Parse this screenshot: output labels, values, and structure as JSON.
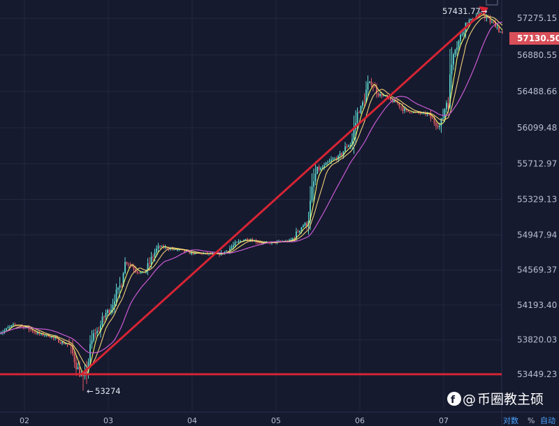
{
  "chart_data": {
    "type": "candlestick",
    "y_ticks": [
      "57275.15",
      "56880.55",
      "56488.66",
      "56099.48",
      "55712.97",
      "55329.13",
      "54947.94",
      "54569.37",
      "54193.40",
      "53820.03",
      "53449.23"
    ],
    "x_ticks": [
      "02",
      "03",
      "04",
      "05",
      "06",
      "07"
    ],
    "ylim": [
      53230,
      57500
    ],
    "current_price": "57130.50",
    "high_label": "57431.77",
    "high_arrow": "→",
    "low_label": "53274",
    "low_arrow": "←",
    "path": [
      {
        "t": -0.3,
        "p": 53900
      },
      {
        "t": -0.1,
        "p": 53980
      },
      {
        "t": 0.25,
        "p": 53870
      },
      {
        "t": 0.5,
        "p": 53780
      },
      {
        "t": 0.7,
        "p": 53420
      },
      {
        "t": 0.85,
        "p": 53900
      },
      {
        "t": 1.0,
        "p": 54130
      },
      {
        "t": 1.12,
        "p": 54350
      },
      {
        "t": 1.2,
        "p": 54650
      },
      {
        "t": 1.4,
        "p": 54540
      },
      {
        "t": 1.62,
        "p": 54820
      },
      {
        "t": 1.8,
        "p": 54790
      },
      {
        "t": 2.0,
        "p": 54750
      },
      {
        "t": 2.3,
        "p": 54740
      },
      {
        "t": 2.65,
        "p": 54900
      },
      {
        "t": 2.85,
        "p": 54860
      },
      {
        "t": 3.15,
        "p": 54880
      },
      {
        "t": 3.35,
        "p": 55060
      },
      {
        "t": 3.5,
        "p": 55650
      },
      {
        "t": 3.72,
        "p": 55770
      },
      {
        "t": 3.88,
        "p": 55920
      },
      {
        "t": 4.0,
        "p": 56300
      },
      {
        "t": 4.12,
        "p": 56580
      },
      {
        "t": 4.25,
        "p": 56450
      },
      {
        "t": 4.4,
        "p": 56380
      },
      {
        "t": 4.58,
        "p": 56270
      },
      {
        "t": 4.78,
        "p": 56250
      },
      {
        "t": 4.95,
        "p": 56120
      },
      {
        "t": 5.05,
        "p": 56400
      },
      {
        "t": 5.12,
        "p": 56950
      },
      {
        "t": 5.3,
        "p": 57250
      },
      {
        "t": 5.45,
        "p": 57320
      },
      {
        "t": 5.58,
        "p": 57230
      },
      {
        "t": 5.7,
        "p": 57120
      }
    ],
    "trendline": {
      "from": {
        "t": 0.68,
        "p": 53450
      },
      "to": {
        "t": 5.45,
        "p": 57330
      }
    },
    "support_level": 53450,
    "colors": {
      "up": "#5ed8d0",
      "down": "#e05a66",
      "trend": "#d62434",
      "ma_fast": "#f7f56a",
      "ma_mid": "#f2d07a",
      "ma_slow": "#c95bd6",
      "tag_bg": "#d84f59"
    }
  },
  "watermark": {
    "symbol": "@",
    "text": "币圈教主硕"
  },
  "axis_options": {
    "log": "对数",
    "percent": "%",
    "auto": "自动"
  }
}
